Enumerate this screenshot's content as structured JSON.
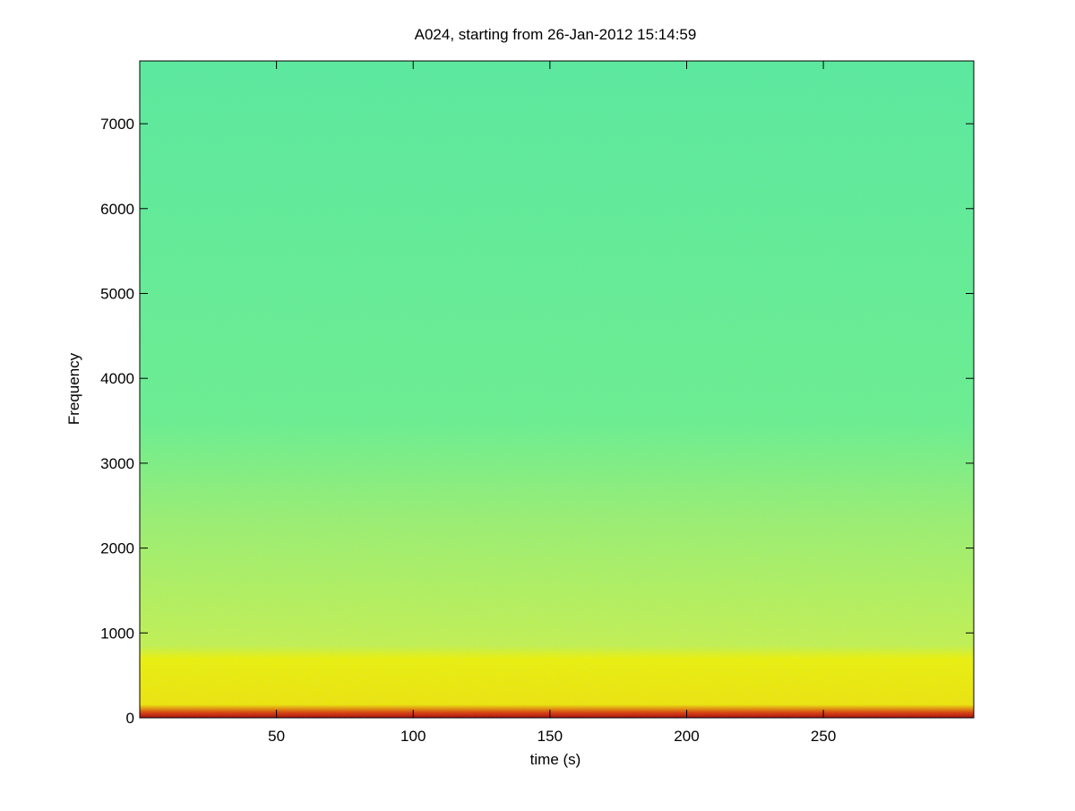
{
  "chart_data": {
    "type": "spectrogram",
    "title": "A024, starting from 26-Jan-2012 15:14:59",
    "xlabel": "time (s)",
    "ylabel": "Frequency",
    "xlim": [
      0,
      305
    ],
    "ylim": [
      0,
      7740
    ],
    "xticks": [
      50,
      100,
      150,
      200,
      250
    ],
    "yticks": [
      0,
      1000,
      2000,
      3000,
      4000,
      5000,
      6000,
      7000
    ],
    "grid": false
  }
}
